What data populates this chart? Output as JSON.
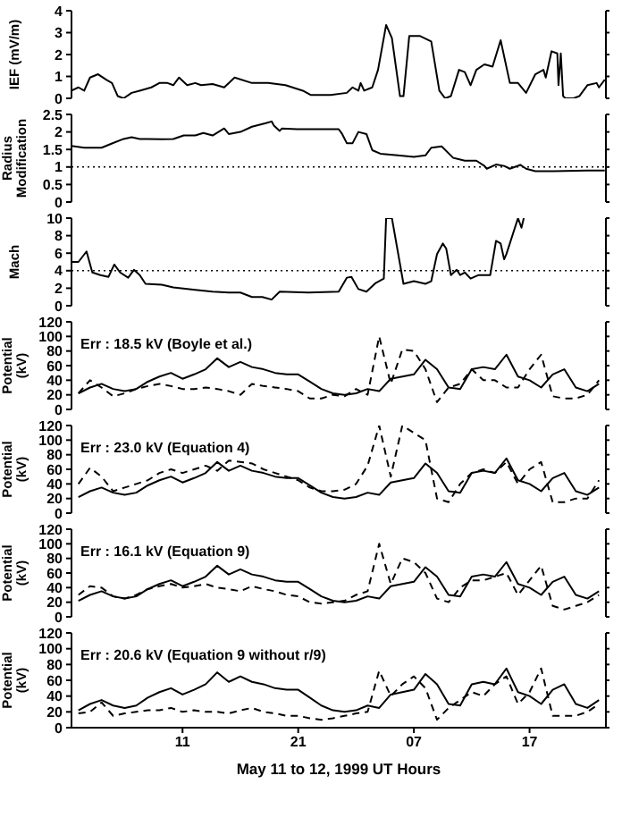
{
  "chart_data": [
    {
      "type": "line",
      "ylabel": "IEF (mV/m)",
      "xlim": [
        "1999-05-11T01:24",
        "1999-05-12T23:36"
      ],
      "ylim": [
        0,
        4
      ],
      "yticks": [
        0,
        1,
        2,
        3,
        4
      ],
      "xticks": [
        {
          "value": "1999-05-11T11:00",
          "label": null
        },
        {
          "value": "1999-05-11T21:00",
          "label": null
        },
        {
          "value": "1999-05-12T07:00",
          "label": null
        },
        {
          "value": "1999-05-12T17:00",
          "label": null
        }
      ],
      "tick_labels": "y",
      "marker": "none",
      "x": [
        "1999-05-11T01:24",
        "1999-05-11T02:00",
        "1999-05-11T02:30",
        "1999-05-11T03:00",
        "1999-05-11T03:42",
        "1999-05-11T04:24",
        "1999-05-11T04:54",
        "1999-05-11T05:24",
        "1999-05-11T05:54",
        "1999-05-11T06:36",
        "1999-05-11T07:18",
        "1999-05-11T08:18",
        "1999-05-11T09:00",
        "1999-05-11T09:42",
        "1999-05-11T10:12",
        "1999-05-11T10:42",
        "1999-05-11T11:24",
        "1999-05-11T12:06",
        "1999-05-11T12:36",
        "1999-05-11T13:36",
        "1999-05-11T14:36",
        "1999-05-11T15:30",
        "1999-05-11T17:00",
        "1999-05-11T18:24",
        "1999-05-11T19:54",
        "1999-05-11T21:24",
        "1999-05-11T22:06",
        "1999-05-11T23:48",
        "1999-05-12T01:12",
        "1999-05-12T01:42",
        "1999-05-12T02:12",
        "1999-05-12T02:24",
        "1999-05-12T02:42",
        "1999-05-12T03:24",
        "1999-05-12T03:54",
        "1999-05-12T04:36",
        "1999-05-12T05:06",
        "1999-05-12T05:48",
        "1999-05-12T06:06",
        "1999-05-12T06:36",
        "1999-05-12T07:30",
        "1999-05-12T08:30",
        "1999-05-12T09:12",
        "1999-05-12T09:42",
        "1999-05-12T10:12",
        "1999-05-12T10:54",
        "1999-05-12T11:24",
        "1999-05-12T11:54",
        "1999-05-12T12:24",
        "1999-05-12T13:06",
        "1999-05-12T13:48",
        "1999-05-12T14:30",
        "1999-05-12T15:18",
        "1999-05-12T16:00",
        "1999-05-12T16:42",
        "1999-05-12T17:30",
        "1999-05-12T18:12",
        "1999-05-12T18:24",
        "1999-05-12T18:54",
        "1999-05-12T19:24",
        "1999-05-12T19:30",
        "1999-05-12T19:42",
        "1999-05-12T19:54",
        "1999-05-12T20:06",
        "1999-05-12T20:48",
        "1999-05-12T21:18",
        "1999-05-12T22:00",
        "1999-05-12T22:48",
        "1999-05-12T23:00",
        "1999-05-12T23:30"
      ],
      "series": [
        {
          "color": "#000000",
          "line_style": "solid",
          "values": [
            0.35,
            0.5,
            0.35,
            0.95,
            1.1,
            0.85,
            0.7,
            0.1,
            0.0,
            0.25,
            0.35,
            0.5,
            0.7,
            0.7,
            0.6,
            0.95,
            0.6,
            0.7,
            0.6,
            0.65,
            0.5,
            0.95,
            0.7,
            0.7,
            0.6,
            0.35,
            0.15,
            0.15,
            0.25,
            0.5,
            0.35,
            0.7,
            0.35,
            0.5,
            1.3,
            3.35,
            2.75,
            0.1,
            0.1,
            2.85,
            2.85,
            2.6,
            0.35,
            0.0,
            0.1,
            1.3,
            1.2,
            0.6,
            1.3,
            1.55,
            1.45,
            2.65,
            0.7,
            0.7,
            0.25,
            1.1,
            1.3,
            0.95,
            2.15,
            2.05,
            0.6,
            2.05,
            0.1,
            0.0,
            0.0,
            0.1,
            0.6,
            0.7,
            0.5,
            0.85
          ]
        }
      ]
    },
    {
      "type": "line",
      "ylabel": "Radius Modification",
      "xlim": [
        "1999-05-11T01:24",
        "1999-05-12T23:36"
      ],
      "ylim": [
        0,
        2.5
      ],
      "yticks": [
        0,
        0.5,
        1,
        1.5,
        2,
        2.5
      ],
      "xticks": [
        {
          "value": "1999-05-11T11:00",
          "label": null
        },
        {
          "value": "1999-05-11T21:00",
          "label": null
        },
        {
          "value": "1999-05-12T07:00",
          "label": null
        },
        {
          "value": "1999-05-12T17:00",
          "label": null
        }
      ],
      "tick_labels": "y",
      "marker": "none",
      "ref_lines": [
        {
          "axis": "y",
          "value": 1,
          "line_style": "dotted",
          "color": "#000000"
        }
      ],
      "x": [
        "1999-05-11T01:24",
        "1999-05-11T02:30",
        "1999-05-11T04:00",
        "1999-05-11T04:54",
        "1999-05-11T05:54",
        "1999-05-11T06:36",
        "1999-05-11T07:18",
        "1999-05-11T08:00",
        "1999-05-11T09:12",
        "1999-05-11T10:12",
        "1999-05-11T11:06",
        "1999-05-11T12:06",
        "1999-05-11T12:48",
        "1999-05-11T13:36",
        "1999-05-11T14:36",
        "1999-05-11T15:00",
        "1999-05-11T16:00",
        "1999-05-11T17:00",
        "1999-05-11T18:12",
        "1999-05-11T18:42",
        "1999-05-11T18:54",
        "1999-05-11T19:24",
        "1999-05-11T19:36",
        "1999-05-11T20:54",
        "1999-05-12T00:30",
        "1999-05-12T00:48",
        "1999-05-12T01:12",
        "1999-05-12T01:42",
        "1999-05-12T02:12",
        "1999-05-12T02:54",
        "1999-05-12T03:24",
        "1999-05-12T04:06",
        "1999-05-12T05:36",
        "1999-05-12T07:00",
        "1999-05-12T08:00",
        "1999-05-12T08:30",
        "1999-05-12T09:24",
        "1999-05-12T10:24",
        "1999-05-12T11:24",
        "1999-05-12T12:24",
        "1999-05-12T13:06",
        "1999-05-12T13:18",
        "1999-05-12T14:06",
        "1999-05-12T14:48",
        "1999-05-12T15:18",
        "1999-05-12T16:12",
        "1999-05-12T16:42",
        "1999-05-12T17:30",
        "1999-05-12T19:06",
        "1999-05-12T22:00",
        "1999-05-12T23:30"
      ],
      "series": [
        {
          "color": "#000000",
          "line_style": "solid",
          "values": [
            1.6,
            1.55,
            1.55,
            1.67,
            1.8,
            1.85,
            1.8,
            1.8,
            1.79,
            1.8,
            1.9,
            1.9,
            1.97,
            1.9,
            2.1,
            1.94,
            2.0,
            2.15,
            2.25,
            2.3,
            2.18,
            2.03,
            2.1,
            2.08,
            2.08,
            1.94,
            1.68,
            1.68,
            2.0,
            1.94,
            1.48,
            1.38,
            1.33,
            1.29,
            1.33,
            1.55,
            1.59,
            1.26,
            1.18,
            1.18,
            1.03,
            0.95,
            1.07,
            1.03,
            0.95,
            1.06,
            0.95,
            0.88,
            0.88,
            0.9,
            0.9
          ]
        }
      ]
    },
    {
      "type": "line",
      "ylabel": "Mach",
      "xlim": [
        "1999-05-11T01:24",
        "1999-05-12T23:36"
      ],
      "ylim": [
        0,
        10
      ],
      "yticks": [
        0,
        2,
        4,
        6,
        8,
        10
      ],
      "xticks": [
        {
          "value": "1999-05-11T11:00",
          "label": null
        },
        {
          "value": "1999-05-11T21:00",
          "label": null
        },
        {
          "value": "1999-05-12T07:00",
          "label": null
        },
        {
          "value": "1999-05-12T17:00",
          "label": null
        }
      ],
      "tick_labels": "y",
      "marker": "none",
      "ref_lines": [
        {
          "axis": "y",
          "value": 4,
          "line_style": "dotted",
          "color": "#000000"
        }
      ],
      "x": [
        "1999-05-11T01:24",
        "1999-05-11T02:00",
        "1999-05-11T02:42",
        "1999-05-11T03:12",
        "1999-05-11T03:54",
        "1999-05-11T04:36",
        "1999-05-11T05:06",
        "1999-05-11T05:36",
        "1999-05-11T06:18",
        "1999-05-11T06:48",
        "1999-05-11T07:18",
        "1999-05-11T07:48",
        "1999-05-11T09:12",
        "1999-05-11T10:12",
        "1999-05-11T12:06",
        "1999-05-11T13:36",
        "1999-05-11T15:00",
        "1999-05-11T16:00",
        "1999-05-11T17:00",
        "1999-05-11T17:54",
        "1999-05-11T18:42",
        "1999-05-11T19:24",
        "1999-05-11T21:54",
        "1999-05-12T00:30",
        "1999-05-12T01:12",
        "1999-05-12T01:36",
        "1999-05-12T02:12",
        "1999-05-12T02:54",
        "1999-05-12T03:42",
        "1999-05-12T04:24",
        "1999-05-12T04:36",
        "1999-05-12T05:06",
        "1999-05-12T06:06",
        "1999-05-12T07:00",
        "1999-05-12T08:00",
        "1999-05-12T08:30",
        "1999-05-12T09:00",
        "1999-05-12T09:30",
        "1999-05-12T09:48",
        "1999-05-12T10:12",
        "1999-05-12T10:42",
        "1999-05-12T11:00",
        "1999-05-12T11:24",
        "1999-05-12T11:54",
        "1999-05-12T12:36",
        "1999-05-12T13:06",
        "1999-05-12T13:36",
        "1999-05-12T14:06",
        "1999-05-12T14:30",
        "1999-05-12T14:48",
        "1999-05-12T15:00",
        "1999-05-12T16:00",
        "1999-05-12T16:18",
        "1999-05-12T16:30"
      ],
      "series": [
        {
          "color": "#000000",
          "line_style": "solid",
          "values": [
            5.0,
            5.0,
            6.2,
            3.8,
            3.5,
            3.3,
            4.7,
            3.8,
            3.2,
            4.1,
            3.5,
            2.5,
            2.4,
            2.1,
            1.8,
            1.6,
            1.5,
            1.5,
            1.0,
            1.0,
            0.7,
            1.6,
            1.5,
            1.6,
            3.2,
            3.3,
            1.9,
            1.6,
            2.6,
            3.1,
            10,
            10,
            2.5,
            2.8,
            2.5,
            2.8,
            5.9,
            7.1,
            6.5,
            3.5,
            4.1,
            3.5,
            3.8,
            3.1,
            3.5,
            3.5,
            3.5,
            7.4,
            7.1,
            5.3,
            5.9,
            10,
            8.9,
            10
          ]
        }
      ]
    },
    {
      "type": "line",
      "ylabel": "Potential (kV)",
      "annotations": [
        "Err : 18.5 kV (Boyle et al.)"
      ],
      "xlim": [
        "1999-05-11T01:24",
        "1999-05-12T23:36"
      ],
      "ylim": [
        0,
        120
      ],
      "yticks": [
        0,
        20,
        40,
        60,
        80,
        100,
        120
      ],
      "xticks": [
        {
          "value": "1999-05-11T11:00",
          "label": null
        },
        {
          "value": "1999-05-11T21:00",
          "label": null
        },
        {
          "value": "1999-05-12T07:00",
          "label": null
        },
        {
          "value": "1999-05-12T17:00",
          "label": null
        }
      ],
      "tick_labels": "y",
      "marker": "none",
      "x": [
        "1999-05-11T02:00",
        "1999-05-11T03:00",
        "1999-05-11T04:00",
        "1999-05-11T05:00",
        "1999-05-11T06:00",
        "1999-05-11T07:00",
        "1999-05-11T08:00",
        "1999-05-11T09:00",
        "1999-05-11T10:00",
        "1999-05-11T11:00",
        "1999-05-11T12:00",
        "1999-05-11T13:00",
        "1999-05-11T14:00",
        "1999-05-11T15:00",
        "1999-05-11T16:00",
        "1999-05-11T17:00",
        "1999-05-11T18:00",
        "1999-05-11T19:00",
        "1999-05-11T20:00",
        "1999-05-11T21:00",
        "1999-05-11T22:00",
        "1999-05-11T23:00",
        "1999-05-12T00:00",
        "1999-05-12T01:00",
        "1999-05-12T02:00",
        "1999-05-12T03:00",
        "1999-05-12T04:00",
        "1999-05-12T05:00",
        "1999-05-12T06:00",
        "1999-05-12T07:00",
        "1999-05-12T08:00",
        "1999-05-12T09:00",
        "1999-05-12T10:00",
        "1999-05-12T11:00",
        "1999-05-12T12:00",
        "1999-05-12T13:00",
        "1999-05-12T14:00",
        "1999-05-12T15:00",
        "1999-05-12T16:00",
        "1999-05-12T17:00",
        "1999-05-12T18:00",
        "1999-05-12T19:00",
        "1999-05-12T20:00",
        "1999-05-12T21:00",
        "1999-05-12T22:00",
        "1999-05-12T23:00"
      ],
      "series": [
        {
          "color": "#000000",
          "line_style": "solid",
          "values": [
            22,
            30,
            35,
            28,
            25,
            28,
            38,
            45,
            50,
            42,
            48,
            55,
            70,
            58,
            65,
            58,
            55,
            50,
            48,
            48,
            38,
            28,
            22,
            20,
            22,
            28,
            25,
            42,
            45,
            48,
            68,
            55,
            30,
            28,
            55,
            58,
            55,
            75,
            45,
            40,
            30,
            48,
            55,
            30,
            25,
            35
          ]
        },
        {
          "color": "#000000",
          "line_style": "dashed",
          "values": [
            22,
            40,
            30,
            18,
            22,
            28,
            32,
            35,
            32,
            28,
            28,
            30,
            28,
            25,
            20,
            35,
            32,
            30,
            28,
            25,
            15,
            15,
            20,
            18,
            28,
            20,
            100,
            35,
            82,
            80,
            55,
            10,
            30,
            35,
            55,
            40,
            40,
            30,
            30,
            55,
            75,
            18,
            15,
            15,
            20,
            40
          ]
        }
      ]
    },
    {
      "type": "line",
      "ylabel": "Potential (kV)",
      "annotations": [
        "Err : 23.0 kV (Equation 4)"
      ],
      "xlim": [
        "1999-05-11T01:24",
        "1999-05-12T23:36"
      ],
      "ylim": [
        0,
        120
      ],
      "yticks": [
        0,
        20,
        40,
        60,
        80,
        100,
        120
      ],
      "xticks": [
        {
          "value": "1999-05-11T11:00",
          "label": null
        },
        {
          "value": "1999-05-11T21:00",
          "label": null
        },
        {
          "value": "1999-05-12T07:00",
          "label": null
        },
        {
          "value": "1999-05-12T17:00",
          "label": null
        }
      ],
      "tick_labels": "y",
      "marker": "none",
      "x": [
        "1999-05-11T02:00",
        "1999-05-11T03:00",
        "1999-05-11T04:00",
        "1999-05-11T05:00",
        "1999-05-11T06:00",
        "1999-05-11T07:00",
        "1999-05-11T08:00",
        "1999-05-11T09:00",
        "1999-05-11T10:00",
        "1999-05-11T11:00",
        "1999-05-11T12:00",
        "1999-05-11T13:00",
        "1999-05-11T14:00",
        "1999-05-11T15:00",
        "1999-05-11T16:00",
        "1999-05-11T17:00",
        "1999-05-11T18:00",
        "1999-05-11T19:00",
        "1999-05-11T20:00",
        "1999-05-11T21:00",
        "1999-05-11T22:00",
        "1999-05-11T23:00",
        "1999-05-12T00:00",
        "1999-05-12T01:00",
        "1999-05-12T02:00",
        "1999-05-12T03:00",
        "1999-05-12T04:00",
        "1999-05-12T05:00",
        "1999-05-12T06:00",
        "1999-05-12T07:00",
        "1999-05-12T08:00",
        "1999-05-12T09:00",
        "1999-05-12T10:00",
        "1999-05-12T11:00",
        "1999-05-12T12:00",
        "1999-05-12T13:00",
        "1999-05-12T14:00",
        "1999-05-12T15:00",
        "1999-05-12T16:00",
        "1999-05-12T17:00",
        "1999-05-12T18:00",
        "1999-05-12T19:00",
        "1999-05-12T20:00",
        "1999-05-12T21:00",
        "1999-05-12T22:00",
        "1999-05-12T23:00"
      ],
      "series": [
        {
          "color": "#000000",
          "line_style": "solid",
          "values": [
            22,
            30,
            35,
            28,
            25,
            28,
            38,
            45,
            50,
            42,
            48,
            55,
            70,
            58,
            65,
            58,
            55,
            50,
            48,
            48,
            38,
            28,
            22,
            20,
            22,
            28,
            25,
            42,
            45,
            48,
            68,
            55,
            30,
            28,
            55,
            58,
            55,
            75,
            45,
            40,
            30,
            48,
            55,
            30,
            25,
            35
          ]
        },
        {
          "color": "#000000",
          "line_style": "dashed",
          "values": [
            40,
            62,
            50,
            30,
            35,
            40,
            45,
            55,
            60,
            55,
            60,
            65,
            58,
            72,
            70,
            68,
            60,
            55,
            50,
            45,
            35,
            30,
            30,
            32,
            40,
            65,
            120,
            50,
            120,
            110,
            100,
            20,
            15,
            40,
            55,
            60,
            55,
            70,
            40,
            60,
            70,
            15,
            15,
            20,
            20,
            45
          ]
        }
      ]
    },
    {
      "type": "line",
      "ylabel": "Potential (kV)",
      "annotations": [
        "Err : 16.1 kV (Equation 9)"
      ],
      "xlim": [
        "1999-05-11T01:24",
        "1999-05-12T23:36"
      ],
      "ylim": [
        0,
        120
      ],
      "yticks": [
        0,
        20,
        40,
        60,
        80,
        100,
        120
      ],
      "xticks": [
        {
          "value": "1999-05-11T11:00",
          "label": null
        },
        {
          "value": "1999-05-11T21:00",
          "label": null
        },
        {
          "value": "1999-05-12T07:00",
          "label": null
        },
        {
          "value": "1999-05-12T17:00",
          "label": null
        }
      ],
      "tick_labels": "y",
      "marker": "none",
      "x": [
        "1999-05-11T02:00",
        "1999-05-11T03:00",
        "1999-05-11T04:00",
        "1999-05-11T05:00",
        "1999-05-11T06:00",
        "1999-05-11T07:00",
        "1999-05-11T08:00",
        "1999-05-11T09:00",
        "1999-05-11T10:00",
        "1999-05-11T11:00",
        "1999-05-11T12:00",
        "1999-05-11T13:00",
        "1999-05-11T14:00",
        "1999-05-11T15:00",
        "1999-05-11T16:00",
        "1999-05-11T17:00",
        "1999-05-11T18:00",
        "1999-05-11T19:00",
        "1999-05-11T20:00",
        "1999-05-11T21:00",
        "1999-05-11T22:00",
        "1999-05-11T23:00",
        "1999-05-12T00:00",
        "1999-05-12T01:00",
        "1999-05-12T02:00",
        "1999-05-12T03:00",
        "1999-05-12T04:00",
        "1999-05-12T05:00",
        "1999-05-12T06:00",
        "1999-05-12T07:00",
        "1999-05-12T08:00",
        "1999-05-12T09:00",
        "1999-05-12T10:00",
        "1999-05-12T11:00",
        "1999-05-12T12:00",
        "1999-05-12T13:00",
        "1999-05-12T14:00",
        "1999-05-12T15:00",
        "1999-05-12T16:00",
        "1999-05-12T17:00",
        "1999-05-12T18:00",
        "1999-05-12T19:00",
        "1999-05-12T20:00",
        "1999-05-12T21:00",
        "1999-05-12T22:00",
        "1999-05-12T23:00"
      ],
      "series": [
        {
          "color": "#000000",
          "line_style": "solid",
          "values": [
            22,
            30,
            35,
            28,
            25,
            28,
            38,
            45,
            50,
            42,
            48,
            55,
            70,
            58,
            65,
            58,
            55,
            50,
            48,
            48,
            38,
            28,
            22,
            20,
            22,
            28,
            25,
            42,
            45,
            48,
            68,
            55,
            30,
            28,
            55,
            58,
            55,
            75,
            45,
            40,
            30,
            48,
            55,
            30,
            25,
            35
          ]
        },
        {
          "color": "#000000",
          "line_style": "dashed",
          "values": [
            30,
            42,
            40,
            28,
            25,
            30,
            38,
            42,
            45,
            40,
            42,
            45,
            40,
            38,
            35,
            42,
            38,
            35,
            30,
            28,
            20,
            18,
            20,
            22,
            30,
            35,
            100,
            45,
            80,
            75,
            60,
            25,
            20,
            40,
            50,
            50,
            55,
            60,
            30,
            50,
            70,
            15,
            10,
            15,
            20,
            30
          ]
        }
      ]
    },
    {
      "type": "line",
      "ylabel": "Potential (kV)",
      "xlabel": "May 11 to 12, 1999 UT Hours",
      "annotations": [
        "Err : 20.6 kV (Equation 9 without r/9)"
      ],
      "xlim": [
        "1999-05-11T01:24",
        "1999-05-12T23:36"
      ],
      "ylim": [
        0,
        120
      ],
      "yticks": [
        0,
        20,
        40,
        60,
        80,
        100,
        120
      ],
      "xticks": [
        {
          "value": "1999-05-11T11:00",
          "label": "11"
        },
        {
          "value": "1999-05-11T21:00",
          "label": "21"
        },
        {
          "value": "1999-05-12T07:00",
          "label": "07"
        },
        {
          "value": "1999-05-12T17:00",
          "label": "17"
        }
      ],
      "marker": "none",
      "x": [
        "1999-05-11T02:00",
        "1999-05-11T03:00",
        "1999-05-11T04:00",
        "1999-05-11T05:00",
        "1999-05-11T06:00",
        "1999-05-11T07:00",
        "1999-05-11T08:00",
        "1999-05-11T09:00",
        "1999-05-11T10:00",
        "1999-05-11T11:00",
        "1999-05-11T12:00",
        "1999-05-11T13:00",
        "1999-05-11T14:00",
        "1999-05-11T15:00",
        "1999-05-11T16:00",
        "1999-05-11T17:00",
        "1999-05-11T18:00",
        "1999-05-11T19:00",
        "1999-05-11T20:00",
        "1999-05-11T21:00",
        "1999-05-11T22:00",
        "1999-05-11T23:00",
        "1999-05-12T00:00",
        "1999-05-12T01:00",
        "1999-05-12T02:00",
        "1999-05-12T03:00",
        "1999-05-12T04:00",
        "1999-05-12T05:00",
        "1999-05-12T06:00",
        "1999-05-12T07:00",
        "1999-05-12T08:00",
        "1999-05-12T09:00",
        "1999-05-12T10:00",
        "1999-05-12T11:00",
        "1999-05-12T12:00",
        "1999-05-12T13:00",
        "1999-05-12T14:00",
        "1999-05-12T15:00",
        "1999-05-12T16:00",
        "1999-05-12T17:00",
        "1999-05-12T18:00",
        "1999-05-12T19:00",
        "1999-05-12T20:00",
        "1999-05-12T21:00",
        "1999-05-12T22:00",
        "1999-05-12T23:00"
      ],
      "series": [
        {
          "color": "#000000",
          "line_style": "solid",
          "values": [
            22,
            30,
            35,
            28,
            25,
            28,
            38,
            45,
            50,
            42,
            48,
            55,
            70,
            58,
            65,
            58,
            55,
            50,
            48,
            48,
            38,
            28,
            22,
            20,
            22,
            28,
            25,
            42,
            45,
            48,
            68,
            55,
            30,
            28,
            55,
            58,
            55,
            75,
            45,
            40,
            30,
            48,
            55,
            30,
            25,
            35
          ]
        },
        {
          "color": "#000000",
          "line_style": "dashed",
          "values": [
            18,
            20,
            32,
            15,
            18,
            20,
            22,
            22,
            25,
            20,
            22,
            20,
            20,
            18,
            22,
            25,
            20,
            18,
            15,
            15,
            12,
            10,
            12,
            15,
            18,
            20,
            72,
            40,
            55,
            65,
            50,
            10,
            25,
            35,
            45,
            40,
            55,
            65,
            30,
            45,
            75,
            15,
            15,
            15,
            20,
            30
          ]
        }
      ]
    }
  ]
}
